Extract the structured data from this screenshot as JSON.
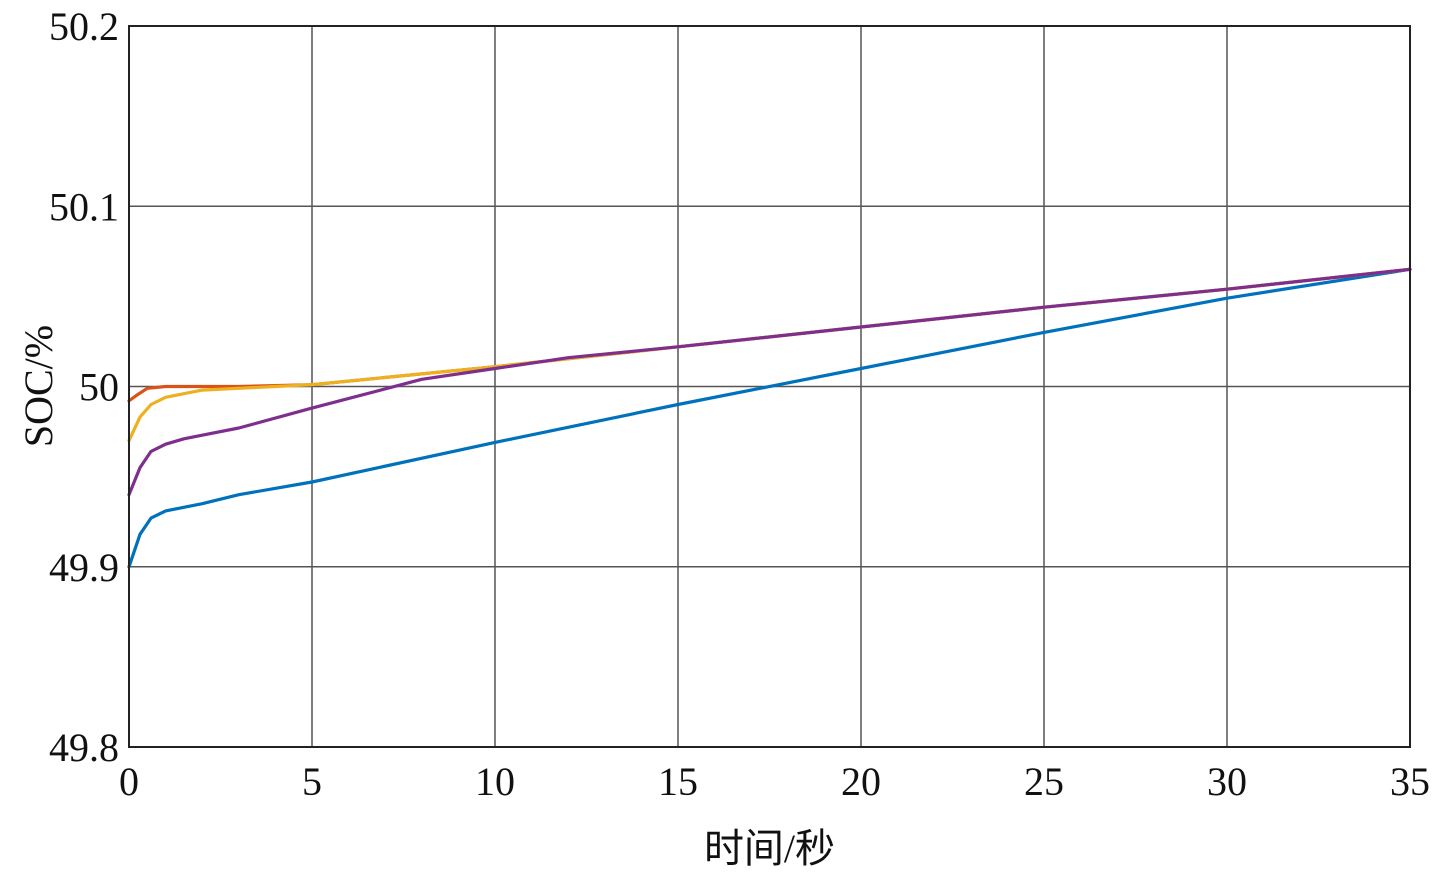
{
  "chart_data": {
    "type": "line",
    "title": "",
    "xlabel": "时间/秒",
    "ylabel": "SOC/%",
    "xlim": [
      0,
      35
    ],
    "ylim": [
      49.8,
      50.2
    ],
    "x_ticks": [
      0,
      5,
      10,
      15,
      20,
      25,
      30,
      35
    ],
    "x_tick_labels": [
      "0",
      "5",
      "10",
      "15",
      "20",
      "25",
      "30",
      "35"
    ],
    "y_ticks": [
      49.8,
      49.9,
      50.0,
      50.1,
      50.2
    ],
    "y_tick_labels": [
      "49.8",
      "49.9",
      "50",
      "50.1",
      "50.2"
    ],
    "grid": true,
    "legend": "none",
    "series": [
      {
        "color": "#0072BD",
        "x": [
          0,
          0.3,
          0.6,
          1,
          1.5,
          2,
          3,
          5,
          10,
          15,
          20,
          25,
          30,
          35
        ],
        "y": [
          49.9,
          49.918,
          49.927,
          49.931,
          49.933,
          49.935,
          49.94,
          49.947,
          49.969,
          49.99,
          50.01,
          50.03,
          50.049,
          50.065
        ]
      },
      {
        "color": "#D95319",
        "x": [
          0,
          0.2,
          0.5,
          1,
          1.5,
          2,
          3,
          5,
          10,
          15,
          20,
          25,
          30,
          35
        ],
        "y": [
          49.992,
          49.995,
          49.999,
          50.0,
          50.0,
          50.0,
          50.0,
          50.001,
          50.011,
          50.022,
          50.033,
          50.044,
          50.054,
          50.065
        ]
      },
      {
        "color": "#EDB120",
        "x": [
          0,
          0.3,
          0.6,
          1,
          1.5,
          2,
          3,
          4,
          5,
          10,
          15,
          20,
          25,
          30,
          35
        ],
        "y": [
          49.97,
          49.983,
          49.99,
          49.994,
          49.996,
          49.998,
          49.999,
          50.0,
          50.001,
          50.011,
          50.022,
          50.033,
          50.044,
          50.054,
          50.065
        ]
      },
      {
        "color": "#7E2F8E",
        "x": [
          0,
          0.3,
          0.6,
          1,
          1.5,
          2,
          3,
          5,
          8,
          10,
          12,
          15,
          20,
          25,
          30,
          35
        ],
        "y": [
          49.94,
          49.955,
          49.964,
          49.968,
          49.971,
          49.973,
          49.977,
          49.988,
          50.004,
          50.01,
          50.016,
          50.022,
          50.033,
          50.044,
          50.054,
          50.065
        ]
      }
    ]
  }
}
